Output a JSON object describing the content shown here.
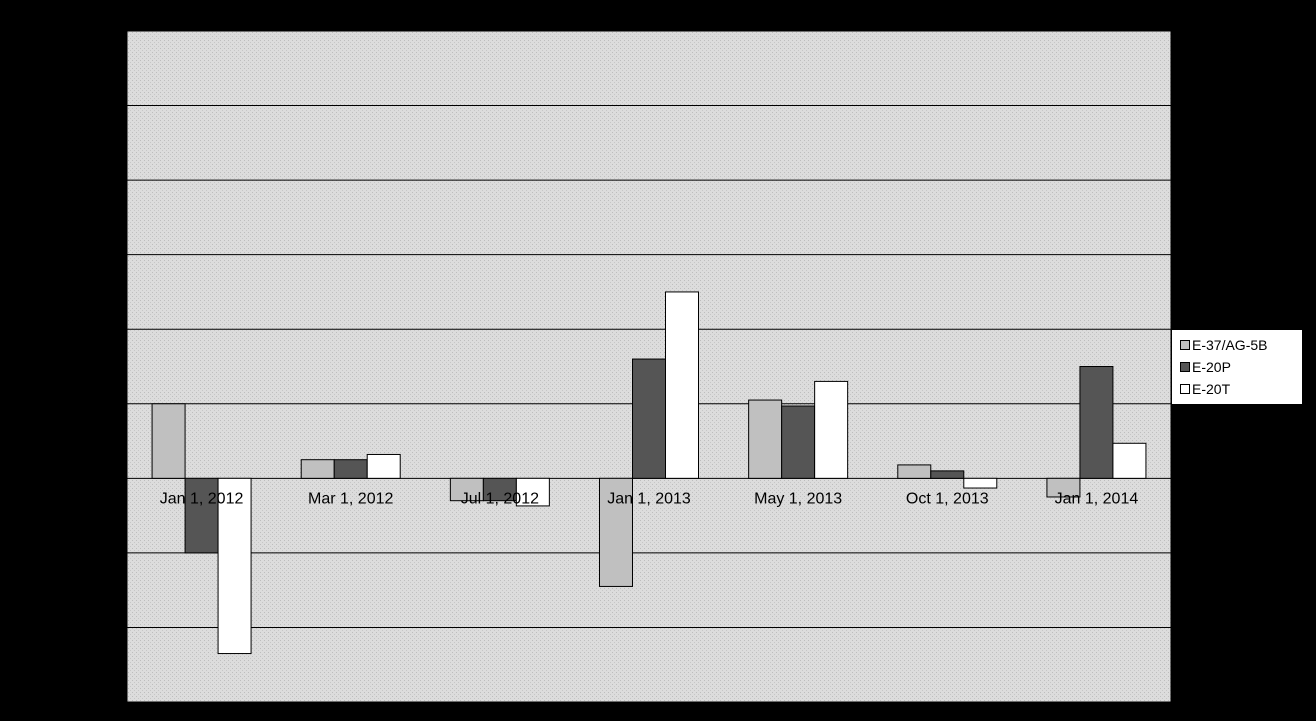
{
  "chart_data": {
    "type": "bar",
    "categories": [
      "Jan 1, 2012",
      "Mar 1, 2012",
      "Jul 1, 2012",
      "Jan 1, 2013",
      "May 1, 2013",
      "Oct 1, 2013",
      "Jan 1, 2014"
    ],
    "series": [
      {
        "name": "E-37/AG-5B",
        "values": [
          1.0,
          0.25,
          -0.3,
          -1.45,
          1.05,
          0.18,
          -0.25
        ]
      },
      {
        "name": "E-20P",
        "values": [
          -1.0,
          0.25,
          -0.3,
          1.6,
          0.97,
          0.1,
          1.5
        ]
      },
      {
        "name": "E-20T",
        "values": [
          -2.35,
          0.32,
          -0.37,
          2.5,
          1.3,
          -0.13,
          0.47
        ]
      }
    ],
    "ylim": [
      -3,
      6
    ],
    "grid": true,
    "legend": "right",
    "colors": {
      "E-37/AG-5B": "#c0c0c0",
      "E-20P": "#555555",
      "E-20T": "#ffffff",
      "background": "#000000",
      "plot_area": "#d9d9d9"
    }
  }
}
